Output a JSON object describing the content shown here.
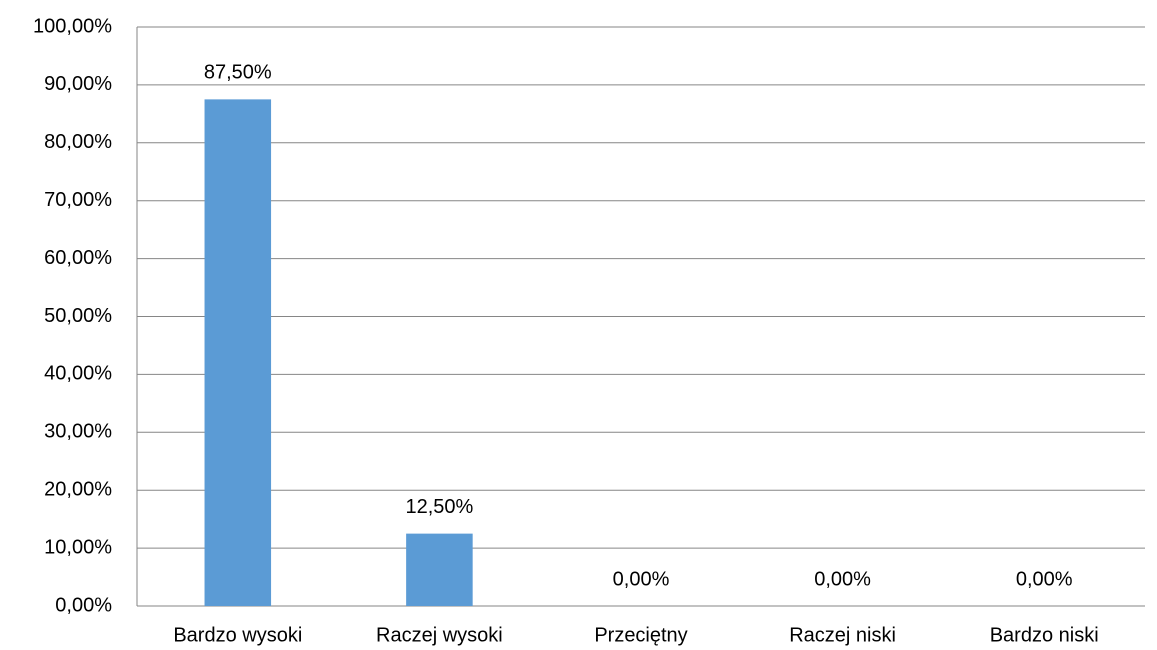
{
  "chart_data": {
    "type": "bar",
    "categories": [
      "Bardzo wysoki",
      "Raczej wysoki",
      "Przeciętny",
      "Raczej niski",
      "Bardzo niski"
    ],
    "values": [
      87.5,
      12.5,
      0,
      0,
      0
    ],
    "value_labels": [
      "87,50%",
      "12,50%",
      "0,00%",
      "0,00%",
      "0,00%"
    ],
    "color": "#5b9bd5",
    "ylim": [
      0,
      100
    ],
    "yticks": [
      {
        "value": 0,
        "label": "0,00%"
      },
      {
        "value": 10,
        "label": "10,00%"
      },
      {
        "value": 20,
        "label": "20,00%"
      },
      {
        "value": 30,
        "label": "30,00%"
      },
      {
        "value": 40,
        "label": "40,00%"
      },
      {
        "value": 50,
        "label": "50,00%"
      },
      {
        "value": 60,
        "label": "60,00%"
      },
      {
        "value": 70,
        "label": "70,00%"
      },
      {
        "value": 80,
        "label": "80,00%"
      },
      {
        "value": 90,
        "label": "90,00%"
      },
      {
        "value": 100,
        "label": "100,00%"
      }
    ],
    "grid": true
  }
}
